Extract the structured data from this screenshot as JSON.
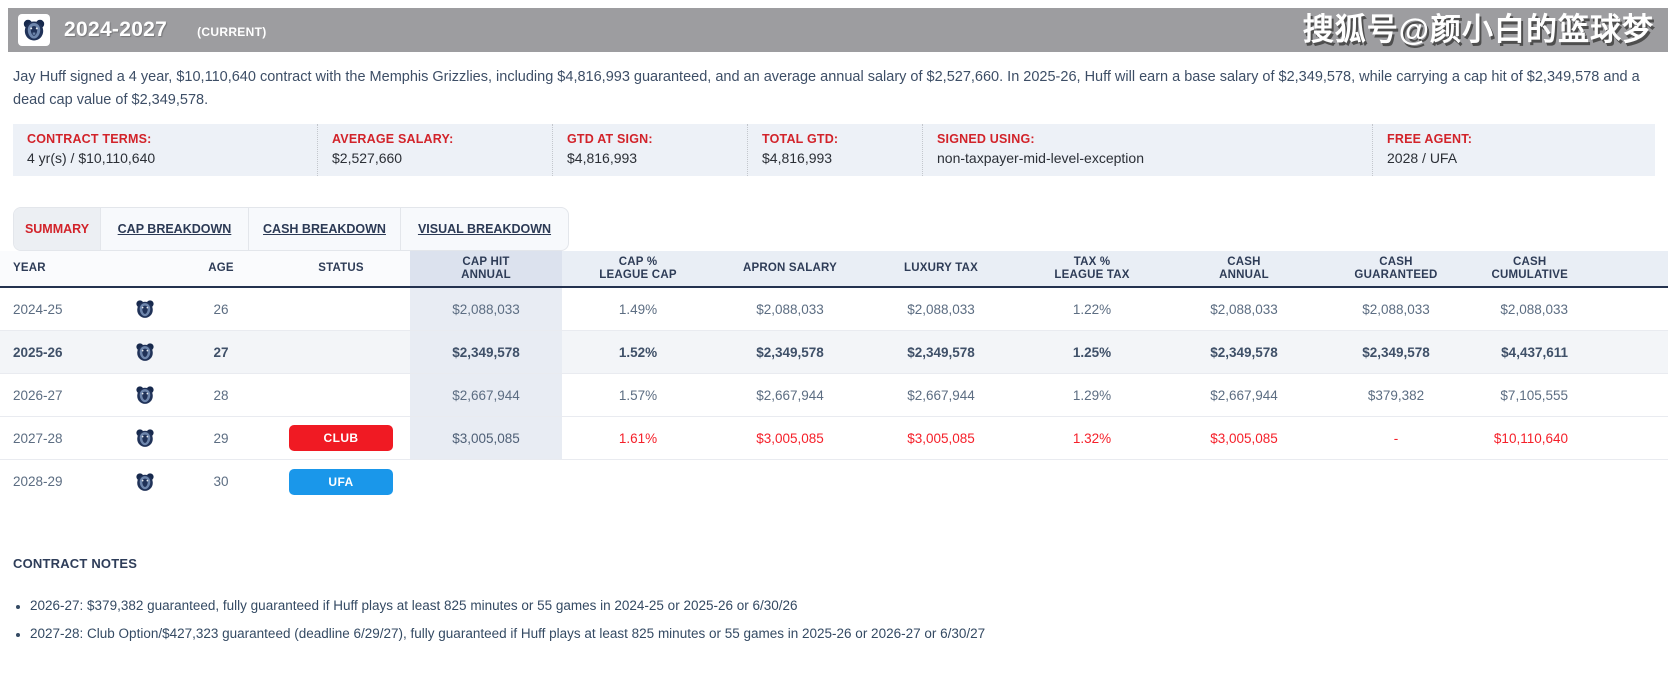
{
  "watermark": "搜狐号@颜小白的篮球梦",
  "header": {
    "title": "2024-2027",
    "badge": "(CURRENT)",
    "team_icon": "memphis-grizzlies-logo"
  },
  "intro_text": "Jay Huff signed a 4 year, $10,110,640 contract with the Memphis Grizzlies, including $4,816,993 guaranteed, and an average annual salary of $2,527,660. In 2025-26, Huff will earn a base salary of $2,349,578, while carrying a cap hit of $2,349,578 and a dead cap value of $2,349,578.",
  "terms": [
    {
      "label": "CONTRACT TERMS:",
      "value": "4 yr(s) / $10,110,640"
    },
    {
      "label": "AVERAGE SALARY:",
      "value": "$2,527,660"
    },
    {
      "label": "GTD AT SIGN:",
      "value": "$4,816,993"
    },
    {
      "label": "TOTAL GTD:",
      "value": "$4,816,993"
    },
    {
      "label": "SIGNED USING:",
      "value": "non-taxpayer-mid-level-exception"
    },
    {
      "label": "FREE AGENT:",
      "value": "2028 / UFA"
    }
  ],
  "tabs": [
    {
      "label": "SUMMARY",
      "active": true
    },
    {
      "label": "CAP BREAKDOWN",
      "active": false
    },
    {
      "label": "CASH BREAKDOWN",
      "active": false
    },
    {
      "label": "VISUAL BREAKDOWN",
      "active": false
    }
  ],
  "chart_data": {
    "type": "table",
    "title": "Contract year-by-year summary",
    "columns": [
      "YEAR",
      "TEAM",
      "AGE",
      "STATUS",
      "CAP HIT ANNUAL",
      "CAP % LEAGUE CAP",
      "APRON SALARY",
      "LUXURY TAX",
      "TAX % LEAGUE TAX",
      "CASH ANNUAL",
      "CASH GUARANTEED",
      "CASH CUMULATIVE"
    ]
  },
  "table": {
    "headers": [
      "YEAR",
      "",
      "AGE",
      "STATUS",
      "CAP HIT\nANNUAL",
      "CAP %\nLEAGUE CAP",
      "APRON SALARY",
      "LUXURY TAX",
      "TAX %\nLEAGUE TAX",
      "CASH\nANNUAL",
      "CASH\nGUARANTEED",
      "CASH\nCUMULATIVE"
    ],
    "rows": [
      {
        "year": "2024-25",
        "team_icon": "memphis-grizzlies-logo",
        "age": "26",
        "status": "",
        "status_color": "",
        "cap_hit": "$2,088,033",
        "cap_pct": "1.49%",
        "apron": "$2,088,033",
        "luxury": "$2,088,033",
        "tax_pct": "1.22%",
        "cash_annual": "$2,088,033",
        "cash_guaranteed": "$2,088,033",
        "cash_cumulative": "$2,088,033",
        "highlight": false,
        "red": false
      },
      {
        "year": "2025-26",
        "team_icon": "memphis-grizzlies-logo",
        "age": "27",
        "status": "",
        "status_color": "",
        "cap_hit": "$2,349,578",
        "cap_pct": "1.52%",
        "apron": "$2,349,578",
        "luxury": "$2,349,578",
        "tax_pct": "1.25%",
        "cash_annual": "$2,349,578",
        "cash_guaranteed": "$2,349,578",
        "cash_cumulative": "$4,437,611",
        "highlight": true,
        "red": false
      },
      {
        "year": "2026-27",
        "team_icon": "memphis-grizzlies-logo",
        "age": "28",
        "status": "",
        "status_color": "",
        "cap_hit": "$2,667,944",
        "cap_pct": "1.57%",
        "apron": "$2,667,944",
        "luxury": "$2,667,944",
        "tax_pct": "1.29%",
        "cash_annual": "$2,667,944",
        "cash_guaranteed": "$379,382",
        "cash_cumulative": "$7,105,555",
        "highlight": false,
        "red": false
      },
      {
        "year": "2027-28",
        "team_icon": "memphis-grizzlies-logo",
        "age": "29",
        "status": "CLUB",
        "status_color": "#f01a23",
        "cap_hit": "$3,005,085",
        "cap_pct": "1.61%",
        "apron": "$3,005,085",
        "luxury": "$3,005,085",
        "tax_pct": "1.32%",
        "cash_annual": "$3,005,085",
        "cash_guaranteed": "-",
        "cash_cumulative": "$10,110,640",
        "highlight": false,
        "red": true
      },
      {
        "year": "2028-29",
        "team_icon": "memphis-grizzlies-logo",
        "age": "30",
        "status": "UFA",
        "status_color": "#1a97ea",
        "cap_hit": "",
        "cap_pct": "",
        "apron": "",
        "luxury": "",
        "tax_pct": "",
        "cash_annual": "",
        "cash_guaranteed": "",
        "cash_cumulative": "",
        "highlight": false,
        "red": false
      }
    ]
  },
  "notes": {
    "heading": "CONTRACT NOTES",
    "items": [
      "2026-27: $379,382 guaranteed, fully guaranteed if Huff plays at least 825 minutes or 55 games in 2024-25 or 2025-26 or 6/30/26",
      "2027-28: Club Option/$427,323 guaranteed (deadline 6/29/27), fully guaranteed if Huff plays at least 825 minutes or 55 games in 2025-26 or 2026-27 or 6/30/27"
    ]
  },
  "colors": {
    "topbar_gray": "#9d9da0",
    "label_red": "#d2232a",
    "row_red": "#f5202a",
    "club_badge_red": "#f01a23",
    "ufa_badge_blue": "#1a97ea",
    "header_navy": "#2e3c57",
    "strip_bg": "#edf1f7",
    "caphit_col_bg": "#e8ecf3"
  }
}
